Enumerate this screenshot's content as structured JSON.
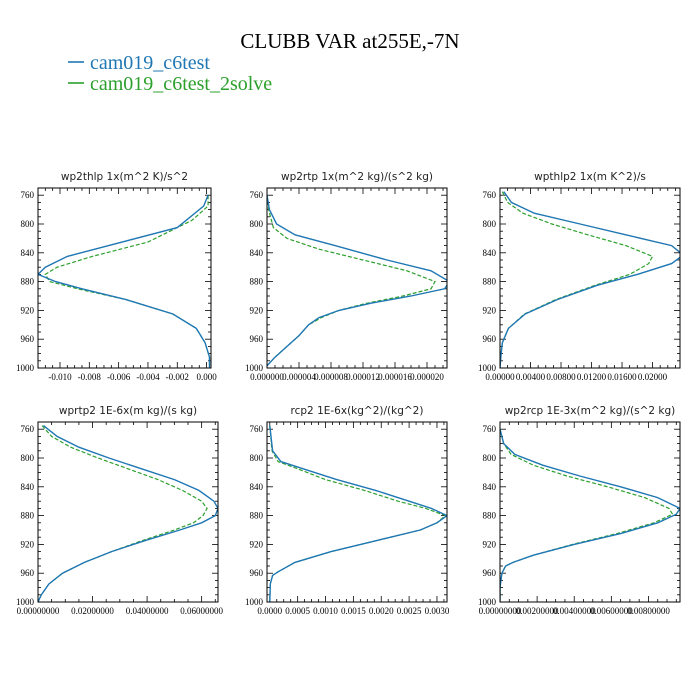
{
  "figure": {
    "title": "CLUBB VAR at255E,-7N"
  },
  "legend": [
    {
      "label": "cam019_c6test",
      "color": "#1f77b4",
      "dash": "solid"
    },
    {
      "label": "cam019_c6test_2solve",
      "color": "#2ca02c",
      "dash": "dashed"
    }
  ],
  "chart_data": [
    {
      "type": "line",
      "title": "wp2thlp   1x(m^2 K)/s^2",
      "xlim": [
        -0.0115,
        0.0003
      ],
      "ylim": [
        1000,
        750
      ],
      "xticks": [
        -0.01,
        -0.008,
        -0.006,
        -0.004,
        -0.002,
        0.0
      ],
      "xtick_labels": [
        "-0.010",
        "-0.008",
        "-0.006",
        "-0.004",
        "-0.002",
        "0.000"
      ],
      "yticks": [
        760,
        800,
        840,
        880,
        920,
        960,
        1000
      ],
      "series": [
        {
          "name": "cam019_c6test",
          "y": [
            760,
            775,
            805,
            845,
            860,
            870,
            880,
            890,
            905,
            925,
            945,
            965,
            985,
            1000
          ],
          "x": [
            0.0001,
            -0.0002,
            -0.002,
            -0.0095,
            -0.011,
            -0.0115,
            -0.0103,
            -0.0085,
            -0.0055,
            -0.0023,
            -0.0007,
            -0.0001,
            0.0002,
            0.0002
          ]
        },
        {
          "name": "cam019_c6test_2solve",
          "y": [
            760,
            775,
            795,
            825,
            845,
            860,
            870,
            880,
            890,
            905,
            925,
            945,
            965,
            985,
            1000
          ],
          "x": [
            0.0001,
            0.0001,
            -0.001,
            -0.004,
            -0.0078,
            -0.0102,
            -0.011,
            -0.0107,
            -0.0088,
            -0.0055,
            -0.0023,
            -0.0007,
            -0.0001,
            0.0002,
            0.0002
          ]
        }
      ]
    },
    {
      "type": "line",
      "title": "wp2rtp   1x(m^2 kg)/(s^2 kg)",
      "xlim": [
        0,
        2.25e-05
      ],
      "ylim": [
        1000,
        750
      ],
      "xticks": [
        0,
        4e-06,
        8e-06,
        1.2e-05,
        1.6e-05,
        2e-05
      ],
      "xtick_labels": [
        "0.000000",
        "0.000004",
        "0.000008",
        "0.000012",
        "0.000016",
        "0.000020"
      ],
      "yticks": [
        760,
        800,
        840,
        880,
        920,
        960,
        1000
      ],
      "series": [
        {
          "name": "cam019_c6test",
          "y": [
            760,
            780,
            800,
            815,
            830,
            850,
            865,
            880,
            890,
            900,
            910,
            920,
            930,
            940,
            955,
            970,
            985,
            997
          ],
          "x": [
            0,
            3e-07,
            1.2e-06,
            3.5e-06,
            8.5e-06,
            1.5e-05,
            2.05e-05,
            2.28e-05,
            2.22e-05,
            1.8e-05,
            1.3e-05,
            9e-06,
            6.5e-06,
            5.2e-06,
            4e-06,
            2.5e-06,
            1e-06,
            0
          ]
        },
        {
          "name": "cam019_c6test_2solve",
          "y": [
            760,
            780,
            805,
            820,
            835,
            850,
            865,
            880,
            890,
            900,
            910,
            920,
            930,
            940,
            955,
            970,
            985,
            997
          ],
          "x": [
            0,
            2e-07,
            8e-07,
            2.5e-06,
            6.5e-06,
            1.2e-05,
            1.75e-05,
            2.1e-05,
            2.05e-05,
            1.7e-05,
            1.25e-05,
            9e-06,
            6.8e-06,
            5.2e-06,
            4e-06,
            2.5e-06,
            1e-06,
            0
          ]
        }
      ]
    },
    {
      "type": "line",
      "title": "wpthlp2   1x(m K^2)/s",
      "xlim": [
        0,
        0.0236
      ],
      "ylim": [
        1000,
        750
      ],
      "xticks": [
        0,
        0.004,
        0.008,
        0.012,
        0.016,
        0.02
      ],
      "xtick_labels": [
        "0.00000",
        "0.00400",
        "0.00800",
        "0.01200",
        "0.01600",
        "0.02000"
      ],
      "yticks": [
        760,
        800,
        840,
        880,
        920,
        960,
        1000
      ],
      "series": [
        {
          "name": "cam019_c6test",
          "y": [
            755,
            770,
            785,
            800,
            815,
            830,
            843,
            855,
            870,
            885,
            905,
            925,
            945,
            965,
            985,
            1000
          ],
          "x": [
            0.0005,
            0.0015,
            0.0045,
            0.0105,
            0.0165,
            0.0225,
            0.024,
            0.0225,
            0.018,
            0.0128,
            0.0075,
            0.0033,
            0.0011,
            0.0003,
            0.0001,
            0
          ]
        },
        {
          "name": "cam019_c6test_2solve",
          "y": [
            755,
            770,
            785,
            800,
            815,
            830,
            845,
            855,
            870,
            885,
            905,
            925,
            945,
            965,
            985,
            1000
          ],
          "x": [
            0.0003,
            0.001,
            0.003,
            0.0068,
            0.0115,
            0.0165,
            0.02,
            0.0195,
            0.017,
            0.0125,
            0.0073,
            0.0032,
            0.0011,
            0.0003,
            0.0001,
            0
          ]
        }
      ]
    },
    {
      "type": "line",
      "title": "wprtp2   1E-6x(m kg)/(s kg)",
      "xlim": [
        0,
        0.066
      ],
      "ylim": [
        1000,
        750
      ],
      "xticks": [
        0,
        0.02,
        0.04,
        0.06
      ],
      "xtick_labels": [
        "0.00000000",
        "0.02000000",
        "0.04000000",
        "0.06000000"
      ],
      "yticks": [
        760,
        800,
        840,
        880,
        920,
        960,
        1000
      ],
      "series": [
        {
          "name": "cam019_c6test",
          "y": [
            755,
            770,
            785,
            800,
            815,
            830,
            845,
            860,
            870,
            880,
            890,
            900,
            915,
            930,
            945,
            960,
            975,
            990,
            1000
          ],
          "x": [
            0.002,
            0.007,
            0.015,
            0.026,
            0.038,
            0.05,
            0.059,
            0.0645,
            0.066,
            0.065,
            0.06,
            0.052,
            0.039,
            0.027,
            0.017,
            0.009,
            0.004,
            0.0012,
            0
          ]
        },
        {
          "name": "cam019_c6test_2solve",
          "y": [
            755,
            770,
            785,
            800,
            815,
            830,
            845,
            860,
            870,
            880,
            890,
            900,
            915,
            930,
            945,
            960,
            975,
            990,
            1000
          ],
          "x": [
            0.0015,
            0.005,
            0.012,
            0.022,
            0.033,
            0.044,
            0.053,
            0.06,
            0.062,
            0.0605,
            0.057,
            0.05,
            0.038,
            0.027,
            0.017,
            0.009,
            0.004,
            0.0012,
            0
          ]
        }
      ]
    },
    {
      "type": "line",
      "title": "rcp2   1E-6x(kg^2)/(kg^2)",
      "xlim": [
        -5e-05,
        0.00318
      ],
      "ylim": [
        1000,
        750
      ],
      "xticks": [
        0,
        0.0005,
        0.001,
        0.0015,
        0.002,
        0.0025,
        0.003
      ],
      "xtick_labels": [
        "0.0000",
        "0.0005",
        "0.0010",
        "0.0015",
        "0.0020",
        "0.0025",
        "0.0030"
      ],
      "yticks": [
        760,
        800,
        840,
        880,
        920,
        960,
        1000
      ],
      "series": [
        {
          "name": "cam019_c6test",
          "y": [
            755,
            790,
            805,
            815,
            830,
            845,
            860,
            870,
            880,
            890,
            900,
            915,
            930,
            945,
            958,
            963,
            975,
            1000
          ],
          "x": [
            0,
            5e-05,
            0.0002,
            0.0006,
            0.0012,
            0.0019,
            0.0025,
            0.0029,
            0.00318,
            0.003,
            0.0027,
            0.0019,
            0.0011,
            0.00045,
            0.00015,
            5e-05,
            1e-05,
            0
          ]
        },
        {
          "name": "cam019_c6test_2solve",
          "y": [
            755,
            790,
            805,
            815,
            830,
            845,
            860,
            870,
            880,
            890,
            900,
            915,
            930,
            945,
            958,
            963,
            975,
            1000
          ],
          "x": [
            0,
            4e-05,
            0.00015,
            0.0005,
            0.001,
            0.0017,
            0.0023,
            0.0028,
            0.00315,
            0.003,
            0.0027,
            0.0019,
            0.0011,
            0.00045,
            0.00015,
            5e-05,
            1e-05,
            0
          ]
        }
      ]
    },
    {
      "type": "line",
      "title": "wp2rcp   1E-3x(m^2 kg)/(s^2 kg)",
      "xlim": [
        0,
        0.0097
      ],
      "ylim": [
        1000,
        750
      ],
      "xticks": [
        0,
        0.002,
        0.004,
        0.006,
        0.008
      ],
      "xtick_labels": [
        "0.00000000",
        "0.00200000",
        "0.00400000",
        "0.00600000",
        "0.00800000"
      ],
      "yticks": [
        760,
        800,
        840,
        880,
        920,
        960,
        1000
      ],
      "series": [
        {
          "name": "cam019_c6test",
          "y": [
            760,
            780,
            795,
            810,
            825,
            840,
            855,
            870,
            878,
            890,
            905,
            920,
            935,
            945,
            950,
            960,
            980,
            1000
          ],
          "x": [
            0,
            0.0002,
            0.0008,
            0.0023,
            0.0043,
            0.0065,
            0.0085,
            0.0097,
            0.0095,
            0.0085,
            0.0065,
            0.004,
            0.0018,
            0.0007,
            0.0003,
            0.0001,
            0,
            0
          ]
        },
        {
          "name": "cam019_c6test_2solve",
          "y": [
            760,
            780,
            795,
            810,
            825,
            840,
            855,
            870,
            878,
            890,
            905,
            920,
            935,
            945,
            950,
            960,
            980,
            1000
          ],
          "x": [
            0,
            0.0002,
            0.0006,
            0.0018,
            0.0036,
            0.0058,
            0.0078,
            0.0091,
            0.0093,
            0.0083,
            0.0063,
            0.0039,
            0.0018,
            0.0007,
            0.0003,
            0.0001,
            0,
            0
          ]
        }
      ]
    }
  ]
}
